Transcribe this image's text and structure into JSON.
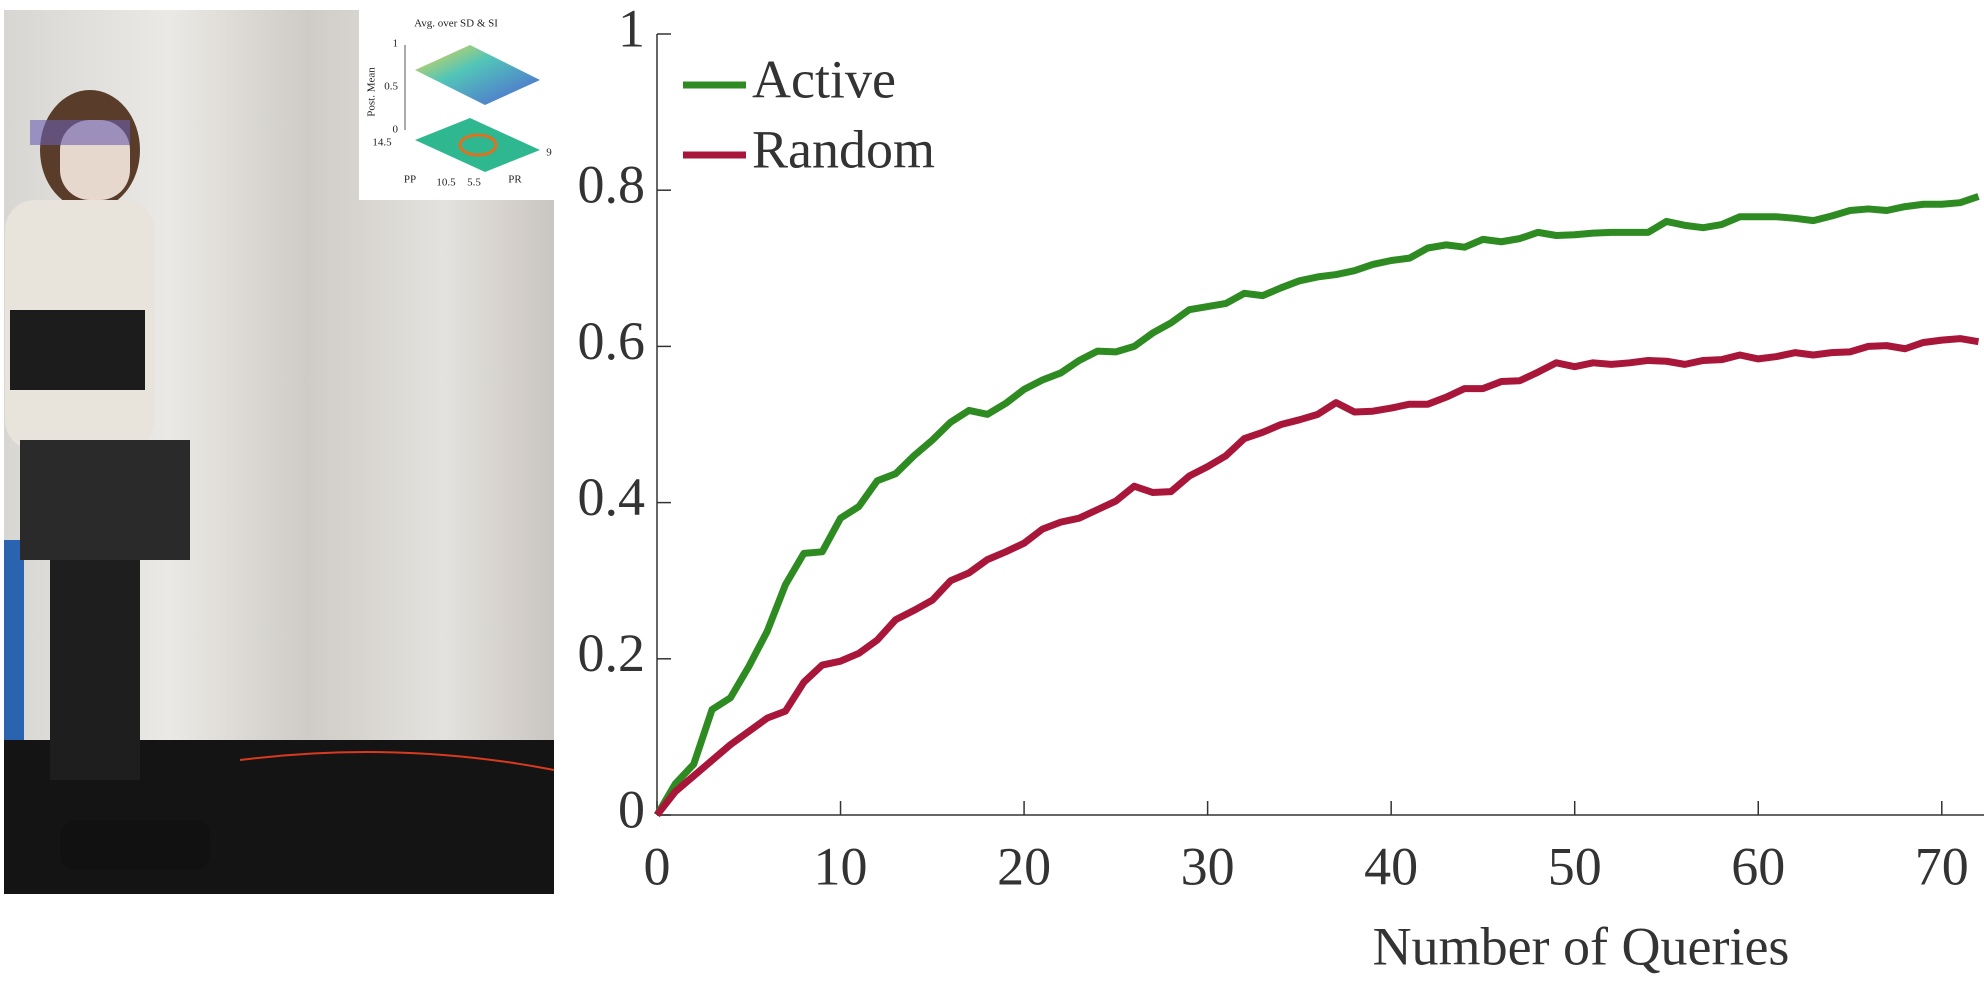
{
  "chart_data": {
    "type": "line",
    "xlabel": "Number of Queries",
    "x": [
      0,
      1,
      2,
      3,
      4,
      5,
      6,
      7,
      8,
      9,
      10,
      11,
      12,
      13,
      14,
      15,
      16,
      17,
      18,
      19,
      20,
      21,
      22,
      23,
      24,
      25,
      26,
      27,
      28,
      29,
      30,
      31,
      32,
      33,
      34,
      35,
      36,
      37,
      38,
      39,
      40,
      41,
      42,
      43,
      44,
      45,
      46,
      47,
      48,
      49,
      50,
      51,
      52,
      53,
      54,
      55,
      56,
      57,
      58,
      59,
      60,
      61,
      62,
      63,
      64,
      65,
      66,
      67,
      68,
      69,
      70,
      71,
      72
    ],
    "series": [
      {
        "name": "Active",
        "color": "#2e8b22",
        "values": [
          0,
          0.04,
          0.065,
          0.135,
          0.15,
          0.19,
          0.235,
          0.295,
          0.335,
          0.337,
          0.38,
          0.395,
          0.428,
          0.437,
          0.46,
          0.48,
          0.503,
          0.518,
          0.513,
          0.527,
          0.545,
          0.557,
          0.566,
          0.582,
          0.594,
          0.593,
          0.6,
          0.617,
          0.63,
          0.647,
          0.651,
          0.655,
          0.668,
          0.665,
          0.675,
          0.684,
          0.689,
          0.692,
          0.697,
          0.705,
          0.71,
          0.713,
          0.726,
          0.73,
          0.727,
          0.737,
          0.734,
          0.738,
          0.746,
          0.742,
          0.743,
          0.745,
          0.746,
          0.746,
          0.746,
          0.76,
          0.755,
          0.752,
          0.756,
          0.766,
          0.766,
          0.766,
          0.764,
          0.761,
          0.767,
          0.774,
          0.776,
          0.774,
          0.779,
          0.782,
          0.782,
          0.784,
          0.792
        ]
      },
      {
        "name": "Random",
        "color": "#a8173a",
        "values": [
          0,
          0.03,
          0.05,
          0.07,
          0.09,
          0.107,
          0.124,
          0.133,
          0.17,
          0.192,
          0.197,
          0.207,
          0.224,
          0.25,
          0.262,
          0.275,
          0.3,
          0.31,
          0.327,
          0.337,
          0.348,
          0.366,
          0.375,
          0.38,
          0.391,
          0.402,
          0.421,
          0.413,
          0.414,
          0.434,
          0.446,
          0.46,
          0.482,
          0.49,
          0.5,
          0.506,
          0.513,
          0.528,
          0.516,
          0.517,
          0.521,
          0.526,
          0.526,
          0.535,
          0.546,
          0.546,
          0.555,
          0.556,
          0.567,
          0.579,
          0.574,
          0.579,
          0.577,
          0.579,
          0.582,
          0.581,
          0.577,
          0.582,
          0.583,
          0.589,
          0.584,
          0.587,
          0.592,
          0.589,
          0.592,
          0.593,
          0.6,
          0.601,
          0.597,
          0.605,
          0.608,
          0.61,
          0.606
        ]
      }
    ],
    "xlim": [
      0,
      72.3
    ],
    "xticks": [
      0,
      10,
      20,
      30,
      40,
      50,
      60,
      70
    ],
    "ylim": [
      0,
      1
    ],
    "yticks": [
      0,
      0.2,
      0.4,
      0.6,
      0.8,
      1
    ],
    "legend": "upper-left",
    "grid": false
  },
  "inset": {
    "title": "Avg. over SD & SI",
    "zlabel": "Post. Mean",
    "zticks": [
      "1",
      "0.5",
      "0"
    ],
    "pp_label": "PP",
    "pp_ticks": [
      "14.5",
      "10.5"
    ],
    "pr_label": "PR",
    "pr_ticks": [
      "5.5",
      "9"
    ]
  }
}
